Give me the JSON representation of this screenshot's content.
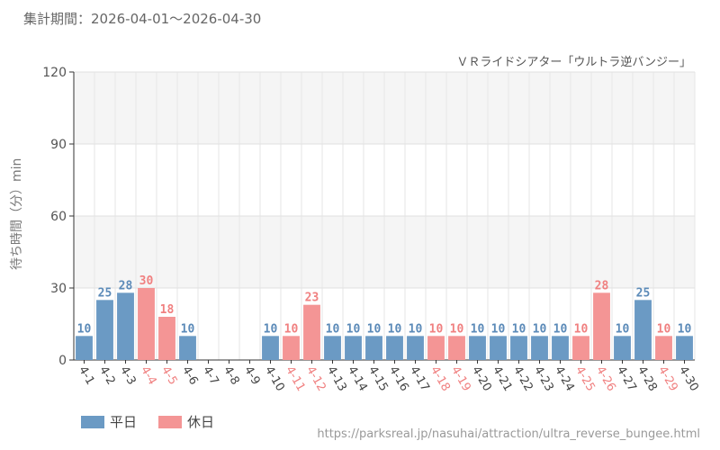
{
  "header": {
    "period": "集計期間：2026-04-01～2026-04-30"
  },
  "source_url": "https://parksreal.jp/nasuhai/attraction/ultra_reverse_bungee.html",
  "colors": {
    "weekday": "#6b9ac4",
    "holiday": "#f49595",
    "weekday_text": "#5b8ab8",
    "holiday_text": "#f08080"
  },
  "chart_data": {
    "type": "bar",
    "title": "ＶＲライドシアター「ウルトラ逆バンジー」",
    "ylabel": "待ち時間（分）min",
    "xlabel": "",
    "ylim": [
      0,
      120
    ],
    "yticks": [
      0,
      30,
      60,
      90,
      120
    ],
    "grid": true,
    "legend_position": "bottom-left",
    "legend": [
      {
        "name": "平日",
        "key": "weekday"
      },
      {
        "name": "休日",
        "key": "holiday"
      }
    ],
    "categories": [
      "4-1",
      "4-2",
      "4-3",
      "4-4",
      "4-5",
      "4-6",
      "4-7",
      "4-8",
      "4-9",
      "4-10",
      "4-11",
      "4-12",
      "4-13",
      "4-14",
      "4-15",
      "4-16",
      "4-17",
      "4-18",
      "4-19",
      "4-20",
      "4-21",
      "4-22",
      "4-23",
      "4-24",
      "4-25",
      "4-26",
      "4-27",
      "4-28",
      "4-29",
      "4-30"
    ],
    "values": [
      10,
      25,
      28,
      30,
      18,
      10,
      null,
      null,
      null,
      10,
      10,
      23,
      10,
      10,
      10,
      10,
      10,
      10,
      10,
      10,
      10,
      10,
      10,
      10,
      10,
      28,
      10,
      25,
      10,
      10
    ],
    "day_type": [
      "weekday",
      "weekday",
      "weekday",
      "holiday",
      "holiday",
      "weekday",
      "weekday",
      "weekday",
      "weekday",
      "weekday",
      "holiday",
      "holiday",
      "weekday",
      "weekday",
      "weekday",
      "weekday",
      "weekday",
      "holiday",
      "holiday",
      "weekday",
      "weekday",
      "weekday",
      "weekday",
      "weekday",
      "holiday",
      "holiday",
      "weekday",
      "weekday",
      "holiday",
      "weekday"
    ]
  }
}
